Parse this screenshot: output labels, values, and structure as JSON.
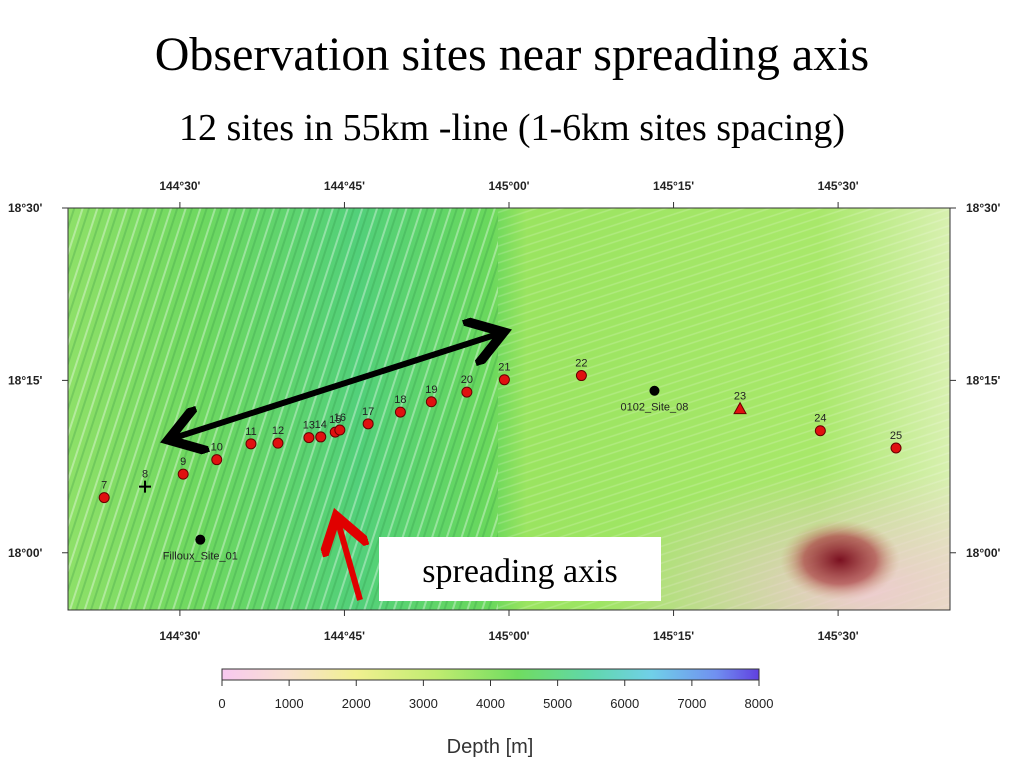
{
  "title": "Observation sites near spreading axis",
  "subtitle": "12 sites in 55km -line (1-6km sites spacing)",
  "map": {
    "xlim": [
      144.33,
      145.67
    ],
    "ylim": [
      17.917,
      18.5
    ],
    "xticks": [
      {
        "value": 144.5,
        "label": "144°30'"
      },
      {
        "value": 144.75,
        "label": "144°45'"
      },
      {
        "value": 145.0,
        "label": "145°00'"
      },
      {
        "value": 145.25,
        "label": "145°15'"
      },
      {
        "value": 145.5,
        "label": "145°30'"
      }
    ],
    "yticks": [
      {
        "value": 18.0,
        "label": "18°00'"
      },
      {
        "value": 18.25,
        "label": "18°15'"
      },
      {
        "value": 18.5,
        "label": "18°30'"
      }
    ],
    "sites": [
      {
        "label": "7",
        "lon": 144.385,
        "lat": 18.08,
        "marker": "circle",
        "color": "#e01010"
      },
      {
        "label": "8",
        "lon": 144.447,
        "lat": 18.096,
        "marker": "cross",
        "color": "#000000"
      },
      {
        "label": "9",
        "lon": 144.505,
        "lat": 18.114,
        "marker": "circle",
        "color": "#e01010"
      },
      {
        "label": "10",
        "lon": 144.556,
        "lat": 18.135,
        "marker": "circle",
        "color": "#e01010"
      },
      {
        "label": "11",
        "lon": 144.608,
        "lat": 18.158,
        "marker": "circle",
        "color": "#e01010"
      },
      {
        "label": "12",
        "lon": 144.649,
        "lat": 18.159,
        "marker": "circle",
        "color": "#e01010"
      },
      {
        "label": "13",
        "lon": 144.696,
        "lat": 18.167,
        "marker": "circle",
        "color": "#e01010"
      },
      {
        "label": "14",
        "lon": 144.714,
        "lat": 18.168,
        "marker": "circle",
        "color": "#e01010"
      },
      {
        "label": "15",
        "lon": 144.736,
        "lat": 18.175,
        "marker": "circle",
        "color": "#e01010"
      },
      {
        "label": "16",
        "lon": 144.743,
        "lat": 18.178,
        "marker": "circle",
        "color": "#e01010"
      },
      {
        "label": "17",
        "lon": 144.786,
        "lat": 18.187,
        "marker": "circle",
        "color": "#e01010"
      },
      {
        "label": "18",
        "lon": 144.835,
        "lat": 18.204,
        "marker": "circle",
        "color": "#e01010"
      },
      {
        "label": "19",
        "lon": 144.882,
        "lat": 18.219,
        "marker": "circle",
        "color": "#e01010"
      },
      {
        "label": "20",
        "lon": 144.936,
        "lat": 18.233,
        "marker": "circle",
        "color": "#e01010"
      },
      {
        "label": "21",
        "lon": 144.993,
        "lat": 18.251,
        "marker": "circle",
        "color": "#e01010"
      },
      {
        "label": "22",
        "lon": 145.11,
        "lat": 18.257,
        "marker": "circle",
        "color": "#e01010"
      },
      {
        "label": "23",
        "lon": 145.351,
        "lat": 18.209,
        "marker": "triangle",
        "color": "#e01010"
      },
      {
        "label": "24",
        "lon": 145.473,
        "lat": 18.177,
        "marker": "circle",
        "color": "#e01010"
      },
      {
        "label": "25",
        "lon": 145.588,
        "lat": 18.152,
        "marker": "circle",
        "color": "#e01010"
      },
      {
        "label": "0102_Site_08",
        "lon": 145.221,
        "lat": 18.235,
        "marker": "dot",
        "color": "#000000"
      },
      {
        "label": "Filloux_Site_01",
        "lon": 144.531,
        "lat": 18.019,
        "marker": "dot",
        "color": "#000000"
      }
    ],
    "annotation": "spreading axis"
  },
  "colorbar": {
    "label": "Depth [m]",
    "lim": [
      0,
      8000
    ],
    "ticks": [
      0,
      1000,
      2000,
      3000,
      4000,
      5000,
      6000,
      7000,
      8000
    ]
  }
}
